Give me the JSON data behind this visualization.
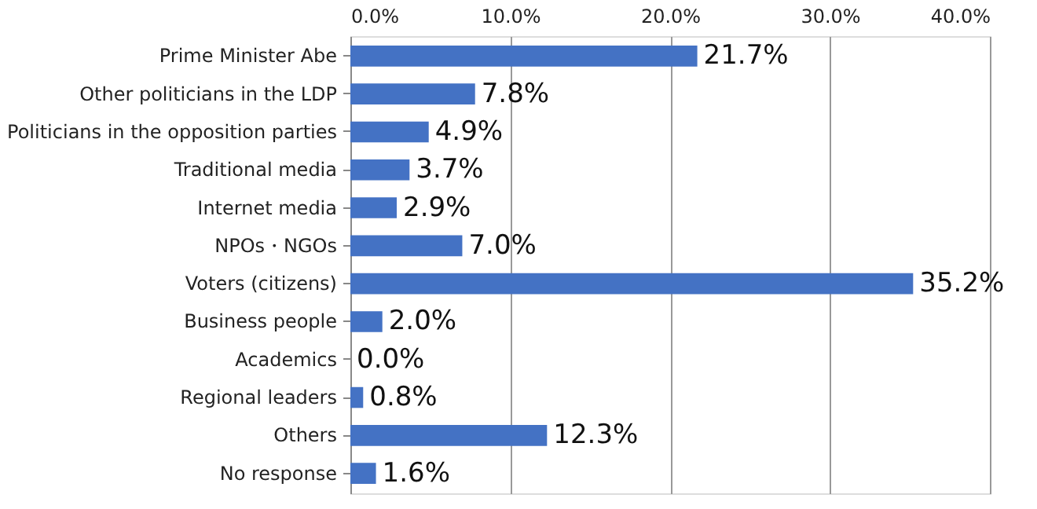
{
  "chart_data": {
    "type": "bar",
    "orientation": "horizontal",
    "categories": [
      "Prime Minister Abe",
      "Other politicians in the LDP",
      "Politicians in the opposition parties",
      "Traditional media",
      "Internet media",
      "NPOs・NGOs",
      "Voters (citizens)",
      "Business people",
      "Academics",
      "Regional leaders",
      "Others",
      "No response"
    ],
    "values": [
      21.7,
      7.8,
      4.9,
      3.7,
      2.9,
      7.0,
      35.2,
      2.0,
      0.0,
      0.8,
      12.3,
      1.6
    ],
    "value_labels": [
      "21.7%",
      "7.8%",
      "4.9%",
      "3.7%",
      "2.9%",
      "7.0%",
      "35.2%",
      "2.0%",
      "0.0%",
      "0.8%",
      "12.3%",
      "1.6%"
    ],
    "color": "#4472c4",
    "xlim": [
      0,
      40
    ],
    "xticks": [
      {
        "value": 0,
        "label": "0.0%"
      },
      {
        "value": 10,
        "label": "10.0%"
      },
      {
        "value": 20,
        "label": "20.0%"
      },
      {
        "value": 30,
        "label": "30.0%"
      },
      {
        "value": 40,
        "label": "40.0%"
      }
    ],
    "grid": "x"
  }
}
